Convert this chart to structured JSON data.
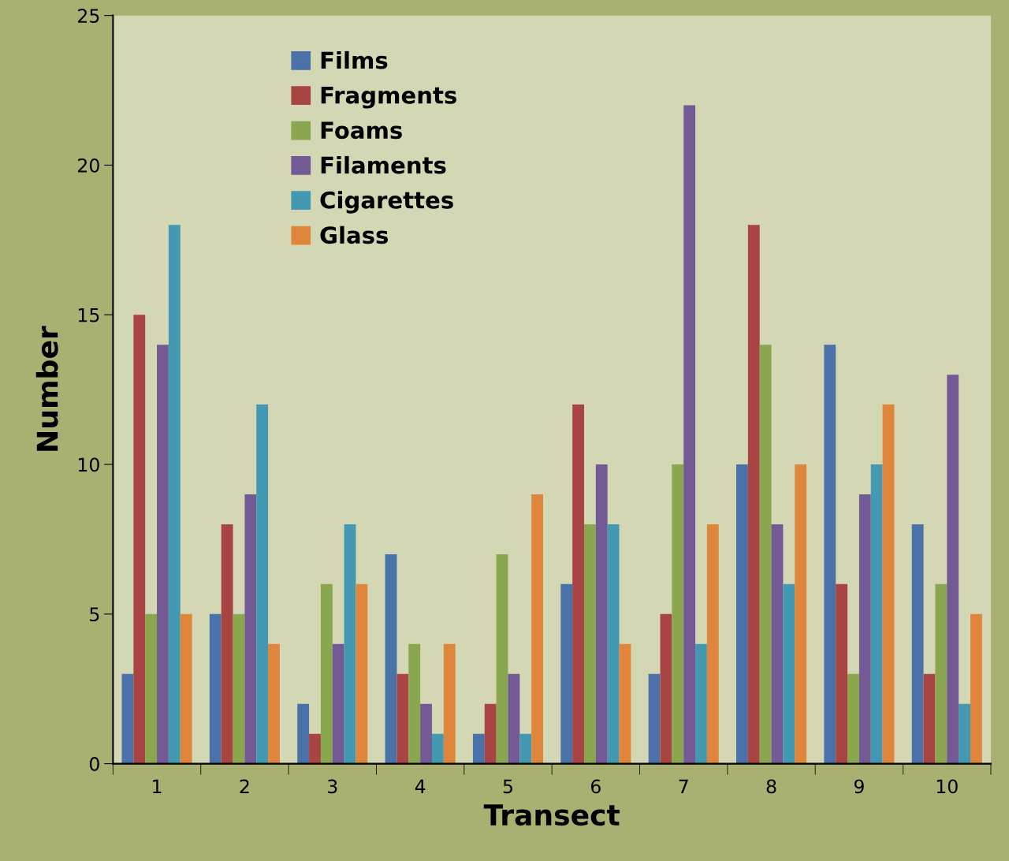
{
  "chart_data": {
    "type": "bar",
    "xlabel": "Transect",
    "ylabel": "Number",
    "categories": [
      "1",
      "2",
      "3",
      "4",
      "5",
      "6",
      "7",
      "8",
      "9",
      "10"
    ],
    "series": [
      {
        "name": "Films",
        "color": "#4a72a8",
        "values": [
          3,
          5,
          2,
          7,
          1,
          6,
          3,
          10,
          14,
          8
        ]
      },
      {
        "name": "Fragments",
        "color": "#a84543",
        "values": [
          15,
          8,
          1,
          3,
          2,
          12,
          5,
          18,
          6,
          3
        ]
      },
      {
        "name": "Foams",
        "color": "#8aa64e",
        "values": [
          5,
          5,
          6,
          4,
          7,
          8,
          10,
          14,
          3,
          6
        ]
      },
      {
        "name": "Filaments",
        "color": "#735a94",
        "values": [
          14,
          9,
          4,
          2,
          3,
          10,
          22,
          8,
          9,
          13
        ]
      },
      {
        "name": "Cigarettes",
        "color": "#4499b2",
        "values": [
          18,
          12,
          8,
          1,
          1,
          8,
          4,
          6,
          10,
          2
        ]
      },
      {
        "name": "Glass",
        "color": "#e0863c",
        "values": [
          5,
          4,
          6,
          4,
          9,
          4,
          8,
          10,
          12,
          5
        ]
      }
    ],
    "ylim": [
      0,
      25
    ],
    "yticks": [
      0,
      5,
      10,
      15,
      20,
      25
    ],
    "grid": false,
    "legend": "top left"
  }
}
